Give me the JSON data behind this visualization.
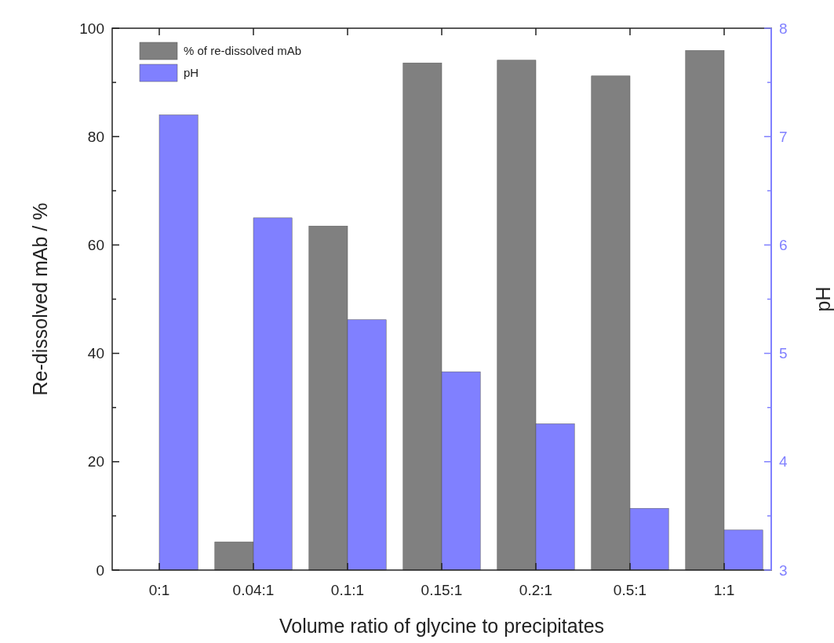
{
  "chart_data": {
    "type": "bar",
    "xlabel": "Volume ratio of glycine to precipitates",
    "ylabel": "Re-dissolved mAb / %",
    "y2label": "pH",
    "categories": [
      "0:1",
      "0.04:1",
      "0.1:1",
      "0.15:1",
      "0.2:1",
      "0.5:1",
      "1:1"
    ],
    "series": [
      {
        "name": "% of re-dissolved mAb",
        "color": "#808080",
        "values": [
          0,
          5.2,
          63.5,
          93.6,
          94.1,
          91.2,
          95.9
        ]
      },
      {
        "name": "pH",
        "color": "#8080ff",
        "axis": "y2",
        "values": [
          7.2,
          6.25,
          5.31,
          4.83,
          4.35,
          3.57,
          3.37
        ]
      }
    ],
    "ylim": [
      0,
      100
    ],
    "yticks": [
      0,
      {
        "value": 10,
        "label": null
      },
      20,
      {
        "value": 30,
        "label": null
      },
      40,
      {
        "value": 50,
        "label": null
      },
      60,
      {
        "value": 70,
        "label": null
      },
      80,
      {
        "value": 90,
        "label": null
      },
      100
    ],
    "y2lim": [
      3,
      8
    ],
    "y2ticks": [
      3,
      {
        "value": 3.5,
        "label": null
      },
      4,
      {
        "value": 4.5,
        "label": null
      },
      5,
      {
        "value": 5.5,
        "label": null
      },
      6,
      {
        "value": 6.5,
        "label": null
      },
      7,
      {
        "value": 7.5,
        "label": null
      },
      8
    ],
    "grid": false,
    "legend": "top left"
  }
}
